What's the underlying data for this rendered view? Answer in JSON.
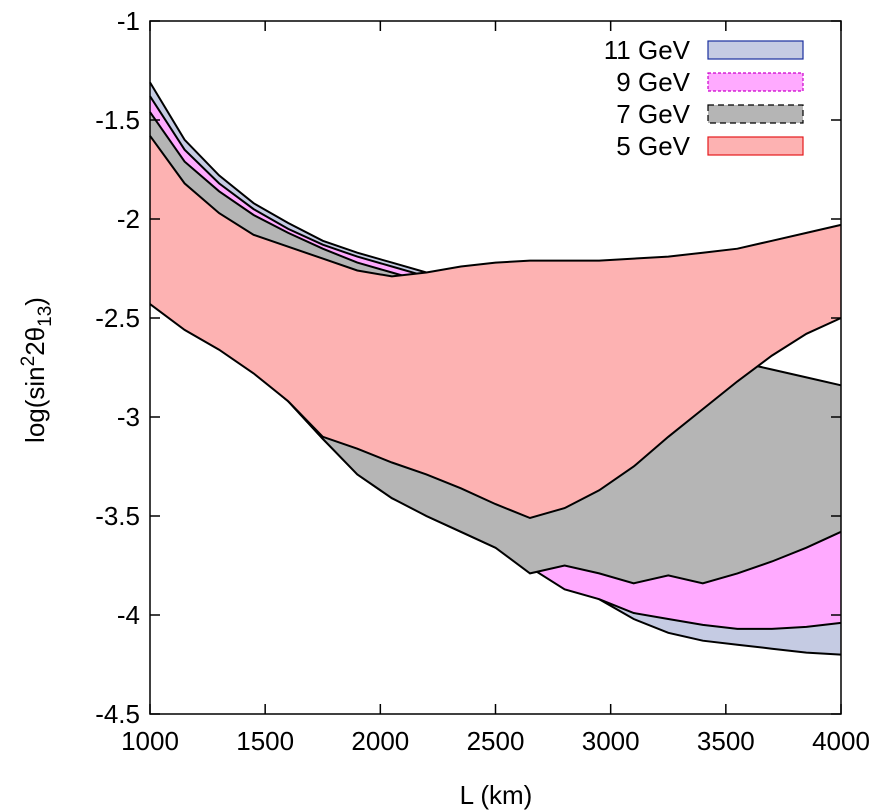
{
  "chart_data": {
    "type": "area",
    "title": "",
    "xlabel": "L (km)",
    "ylabel": {
      "base": "log(sin",
      "sup": "2",
      "mid": "2θ",
      "sub": "13",
      "end": ")"
    },
    "xlim": [
      1000,
      4000
    ],
    "ylim": [
      -4.5,
      -1
    ],
    "x_ticks": [
      1000,
      1500,
      2000,
      2500,
      3000,
      3500,
      4000
    ],
    "y_ticks": [
      -4.5,
      -4,
      -3.5,
      -3,
      -2.5,
      -2,
      -1.5,
      -1
    ],
    "grid": false,
    "legend_position": "top-right",
    "series": [
      {
        "name": "11 GeV",
        "color": "#c5cbe3",
        "stroke": "#1a2f9e",
        "x": [
          1000,
          1150,
          1300,
          1450,
          1600,
          1750,
          1900,
          2050,
          2200,
          2350,
          2500,
          2650,
          2800,
          2950,
          3100,
          3250,
          3400,
          3550,
          3700,
          3850,
          4000
        ],
        "upper": [
          -1.31,
          -1.6,
          -1.78,
          -1.92,
          -2.02,
          -2.11,
          -2.17,
          -2.22,
          -2.27,
          -2.32,
          -2.37,
          -2.42,
          -2.47,
          -2.52,
          -2.57,
          -2.62,
          -2.67,
          -2.72,
          -2.77,
          -2.82,
          -2.87
        ],
        "lower": [
          -2.42,
          -2.55,
          -2.65,
          -2.77,
          -2.92,
          -3.11,
          -3.28,
          -3.4,
          -3.5,
          -3.58,
          -3.66,
          -3.73,
          -3.84,
          -3.92,
          -4.02,
          -4.09,
          -4.13,
          -4.15,
          -4.17,
          -4.19,
          -4.2
        ]
      },
      {
        "name": "9 GeV",
        "color": "#ffaaff",
        "stroke": "#cc00cc",
        "x": [
          1000,
          1150,
          1300,
          1450,
          1600,
          1750,
          1900,
          2050,
          2200,
          2350,
          2500,
          2650,
          2800,
          2950,
          3100,
          3250,
          3400,
          3550,
          3700,
          3850,
          4000
        ],
        "upper": [
          -1.38,
          -1.65,
          -1.82,
          -1.95,
          -2.05,
          -2.13,
          -2.19,
          -2.24,
          -2.29,
          -2.34,
          -2.39,
          -2.44,
          -2.49,
          -2.54,
          -2.59,
          -2.64,
          -2.69,
          -2.74,
          -2.79,
          -2.84,
          -2.89
        ],
        "lower": [
          -2.42,
          -2.55,
          -2.65,
          -2.77,
          -2.92,
          -3.11,
          -3.29,
          -3.41,
          -3.49,
          -3.56,
          -3.61,
          -3.76,
          -3.87,
          -3.92,
          -3.99,
          -4.02,
          -4.05,
          -4.07,
          -4.07,
          -4.06,
          -4.04
        ]
      },
      {
        "name": "7 GeV",
        "color": "#b5b5b5",
        "stroke": "#000000",
        "x": [
          1000,
          1150,
          1300,
          1450,
          1600,
          1750,
          1900,
          2050,
          2200,
          2350,
          2500,
          2650,
          2800,
          2950,
          3100,
          3250,
          3400,
          3550,
          3700,
          3850,
          4000
        ],
        "upper": [
          -1.46,
          -1.71,
          -1.86,
          -1.98,
          -2.07,
          -2.15,
          -2.22,
          -2.27,
          -2.32,
          -2.36,
          -2.41,
          -2.46,
          -2.5,
          -2.55,
          -2.6,
          -2.64,
          -2.68,
          -2.72,
          -2.76,
          -2.8,
          -2.84
        ],
        "lower": [
          -2.42,
          -2.55,
          -2.65,
          -2.77,
          -2.92,
          -3.11,
          -3.29,
          -3.41,
          -3.5,
          -3.58,
          -3.66,
          -3.79,
          -3.75,
          -3.79,
          -3.84,
          -3.8,
          -3.84,
          -3.79,
          -3.73,
          -3.66,
          -3.58
        ]
      },
      {
        "name": "5 GeV",
        "color": "#fdb2b2",
        "stroke": "#e41a1c",
        "x": [
          1000,
          1150,
          1300,
          1450,
          1600,
          1750,
          1900,
          2050,
          2200,
          2350,
          2500,
          2650,
          2800,
          2950,
          3100,
          3250,
          3400,
          3550,
          3700,
          3850,
          4000
        ],
        "upper": [
          -1.58,
          -1.82,
          -1.97,
          -2.08,
          -2.14,
          -2.2,
          -2.26,
          -2.29,
          -2.27,
          -2.24,
          -2.22,
          -2.21,
          -2.21,
          -2.21,
          -2.2,
          -2.19,
          -2.17,
          -2.15,
          -2.11,
          -2.07,
          -2.03
        ],
        "lower": [
          -2.43,
          -2.56,
          -2.66,
          -2.78,
          -2.92,
          -3.1,
          -3.16,
          -3.23,
          -3.29,
          -3.36,
          -3.44,
          -3.51,
          -3.46,
          -3.37,
          -3.25,
          -3.1,
          -2.96,
          -2.82,
          -2.69,
          -2.58,
          -2.5
        ]
      }
    ]
  }
}
